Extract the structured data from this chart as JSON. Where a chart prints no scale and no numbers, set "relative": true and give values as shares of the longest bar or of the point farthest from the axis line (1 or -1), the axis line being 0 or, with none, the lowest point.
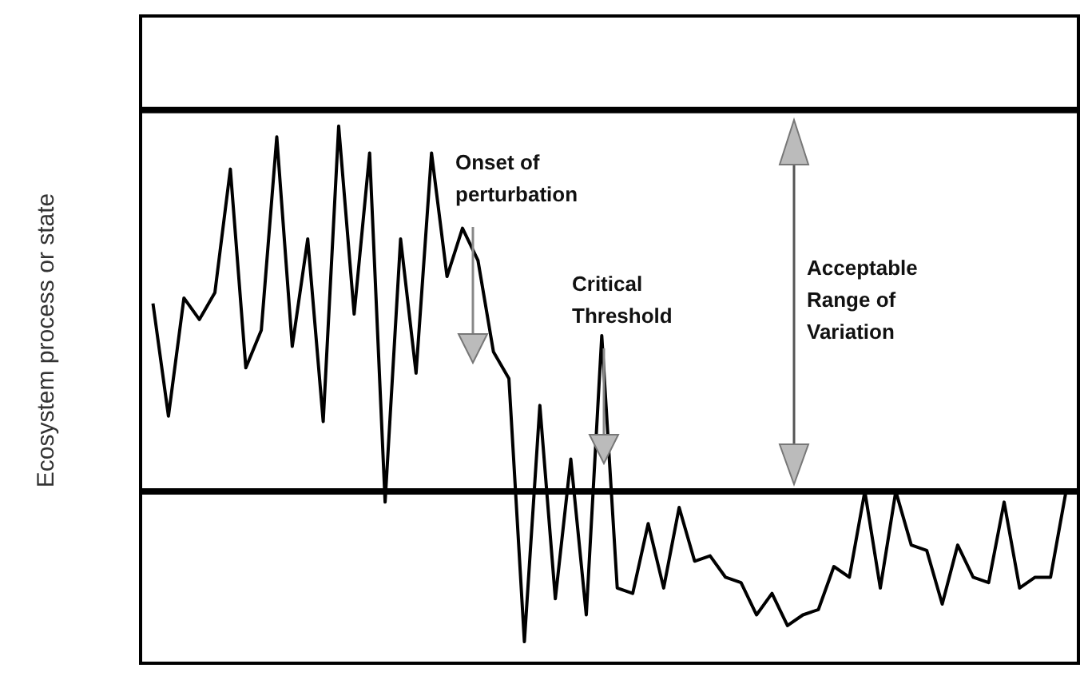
{
  "chart_data": {
    "type": "line",
    "relative": true,
    "ylabel": "Ecosystem process or state",
    "tick_labels": false,
    "grid": false,
    "marker": "none",
    "line_style": "solid",
    "annotations": [
      "Onset of perturbation",
      "Critical Threshold",
      "Acceptable Range of Variation"
    ],
    "ref_lines": [
      {
        "axis": "y",
        "value": 1.03,
        "color": "#000000"
      },
      {
        "axis": "y",
        "value": 0.32,
        "color": "#000000"
      }
    ],
    "categories": [
      null,
      null,
      null,
      null,
      null,
      null,
      null,
      null,
      null,
      null,
      null,
      null,
      null,
      null,
      null,
      null,
      null,
      null,
      null,
      null,
      null,
      null,
      null,
      null,
      null,
      null,
      null,
      null,
      null,
      null,
      null,
      null,
      null,
      null,
      null,
      null,
      null,
      null,
      null,
      null,
      null,
      null,
      null,
      null,
      null,
      null,
      null,
      null,
      null,
      null,
      null,
      null,
      null,
      null,
      null,
      null,
      null,
      null,
      null,
      null
    ],
    "series": [
      {
        "color": "#000000",
        "values": [
          0.67,
          0.46,
          0.68,
          0.64,
          0.69,
          0.92,
          0.55,
          0.62,
          0.98,
          0.59,
          0.79,
          0.45,
          1,
          0.65,
          0.95,
          0.3,
          0.79,
          0.54,
          0.95,
          0.72,
          0.81,
          0.75,
          0.58,
          0.53,
          0.04,
          0.48,
          0.12,
          0.38,
          0.09,
          0.61,
          0.14,
          0.13,
          0.26,
          0.14,
          0.29,
          0.19,
          0.2,
          0.16,
          0.15,
          0.09,
          0.13,
          0.07,
          0.09,
          0.1,
          0.18,
          0.16,
          0.32,
          0.14,
          0.32,
          0.22,
          0.21,
          0.11,
          0.22,
          0.16,
          0.15,
          0.3,
          0.14,
          0.16,
          0.16,
          0.32
        ]
      }
    ]
  }
}
